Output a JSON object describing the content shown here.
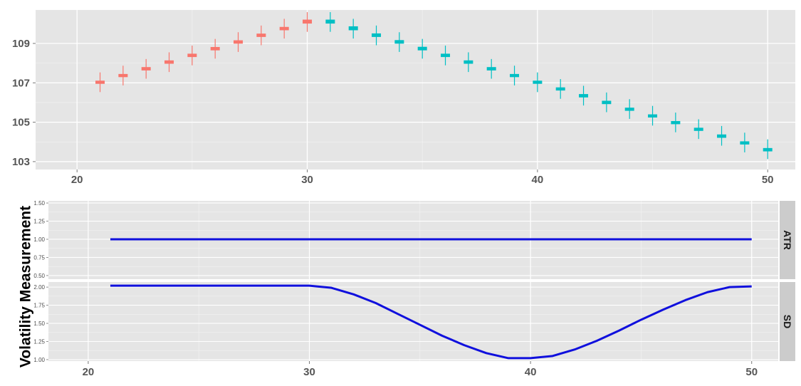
{
  "chart_data": [
    {
      "type": "candlestick",
      "panel": "price",
      "xlim": [
        18.2,
        51.2
      ],
      "ylim": [
        102.6,
        110.7
      ],
      "x_ticks": [
        20,
        30,
        40,
        50
      ],
      "x_tick_labels": [
        "20",
        "30",
        "40",
        "50"
      ],
      "y_ticks": [
        103,
        105,
        107,
        109
      ],
      "y_tick_labels": [
        "103",
        "105",
        "107",
        "109"
      ],
      "grid": true,
      "colors": {
        "rising": "#f8766d",
        "falling": "#00bfc4",
        "panel_bg": "#e5e5e5",
        "grid": "#ffffff"
      },
      "x": [
        21,
        22,
        23,
        24,
        25,
        26,
        27,
        28,
        29,
        30,
        31,
        32,
        33,
        34,
        35,
        36,
        37,
        38,
        39,
        40,
        41,
        42,
        43,
        44,
        45,
        46,
        47,
        48,
        49,
        50
      ],
      "open": [
        106.95,
        107.29,
        107.63,
        107.97,
        108.31,
        108.65,
        108.99,
        109.33,
        109.67,
        110.01,
        110.21,
        109.87,
        109.51,
        109.17,
        108.83,
        108.48,
        108.14,
        107.8,
        107.45,
        107.11,
        106.77,
        106.43,
        106.09,
        105.74,
        105.4,
        105.06,
        104.72,
        104.38,
        104.03,
        103.69
      ],
      "close": [
        107.11,
        107.45,
        107.8,
        108.14,
        108.48,
        108.82,
        109.16,
        109.5,
        109.84,
        110.21,
        110.01,
        109.67,
        109.33,
        108.99,
        108.65,
        108.31,
        107.97,
        107.63,
        107.29,
        106.95,
        106.61,
        106.26,
        105.92,
        105.58,
        105.24,
        104.9,
        104.56,
        104.21,
        103.87,
        103.52
      ],
      "high": [
        107.53,
        107.87,
        108.21,
        108.55,
        108.89,
        109.23,
        109.57,
        109.91,
        110.25,
        110.59,
        110.59,
        110.25,
        109.91,
        109.57,
        109.23,
        108.89,
        108.55,
        108.21,
        107.87,
        107.53,
        107.19,
        106.85,
        106.51,
        106.17,
        105.83,
        105.49,
        105.15,
        104.81,
        104.47,
        104.13
      ],
      "low": [
        106.53,
        106.87,
        107.21,
        107.55,
        107.89,
        108.23,
        108.57,
        108.91,
        109.25,
        109.59,
        109.59,
        109.25,
        108.91,
        108.57,
        108.23,
        107.89,
        107.55,
        107.21,
        106.87,
        106.53,
        106.19,
        105.85,
        105.51,
        105.17,
        104.83,
        104.49,
        104.15,
        103.81,
        103.47,
        103.13
      ]
    },
    {
      "type": "line",
      "panel": "volatility",
      "ylabel": "Volatility Measurement",
      "xlim": [
        18.2,
        51.2
      ],
      "x_ticks": [
        20,
        30,
        40,
        50
      ],
      "x_tick_labels": [
        "20",
        "30",
        "40",
        "50"
      ],
      "grid": true,
      "line_color": "#1010dd",
      "facets": [
        {
          "name": "ATR",
          "ylim": [
            0.45,
            1.53
          ],
          "y_ticks": [
            0.5,
            0.75,
            1.0,
            1.25,
            1.5
          ],
          "y_tick_labels": [
            "0.50",
            "0.75",
            "1.00",
            "1.25",
            "1.50"
          ],
          "x": [
            21,
            30,
            40,
            50
          ],
          "values": [
            1.0,
            1.0,
            1.0,
            1.0
          ]
        },
        {
          "name": "SD",
          "ylim": [
            0.98,
            2.07
          ],
          "y_ticks": [
            1.0,
            1.25,
            1.5,
            1.75,
            2.0
          ],
          "y_tick_labels": [
            "1.00",
            "1.25",
            "1.50",
            "1.75",
            "2.00"
          ],
          "x": [
            21,
            22,
            23,
            24,
            25,
            26,
            27,
            28,
            29,
            30,
            31,
            32,
            33,
            34,
            35,
            36,
            37,
            38,
            39,
            40,
            41,
            42,
            43,
            44,
            45,
            46,
            47,
            48,
            49,
            50
          ],
          "values": [
            2.02,
            2.02,
            2.02,
            2.02,
            2.02,
            2.02,
            2.02,
            2.02,
            2.02,
            2.02,
            1.99,
            1.9,
            1.78,
            1.63,
            1.48,
            1.33,
            1.2,
            1.09,
            1.02,
            1.02,
            1.05,
            1.14,
            1.26,
            1.4,
            1.55,
            1.69,
            1.82,
            1.93,
            2.0,
            2.01
          ]
        }
      ]
    }
  ]
}
